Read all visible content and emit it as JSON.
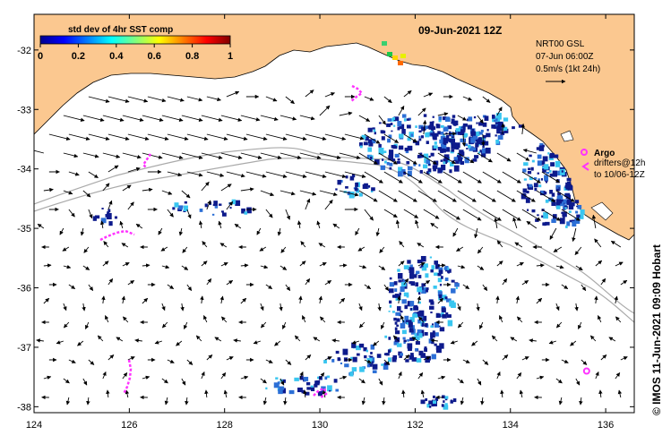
{
  "title": "09-Jun-2021 12Z",
  "colorbar": {
    "label": "std dev of 4hr SST comp",
    "ticks": [
      "0",
      "0.2",
      "0.4",
      "0.6",
      "0.8",
      "1"
    ],
    "range": [
      0,
      1
    ]
  },
  "current_legend": {
    "line1": "NRT00 GSL",
    "line2": "07-Jun 06:00Z",
    "line3": "0.5m/s (1kt 24h)"
  },
  "drifter_legend": {
    "argo": "Argo",
    "drifters": "drifters@12h",
    "to_date": "to 10/06-12Z"
  },
  "credit": "© IMOS 11-Jun-2021 09:09 Hobart",
  "axes": {
    "x_ticks": [
      "124",
      "126",
      "128",
      "130",
      "132",
      "134",
      "136"
    ],
    "y_ticks": [
      "-32",
      "-33",
      "-34",
      "-35",
      "-36",
      "-37",
      "-38"
    ],
    "lon_range": [
      124,
      136.6
    ],
    "lat_range": [
      -38.1,
      -31.4
    ]
  },
  "colors": {
    "land": "#fbc890",
    "drifter": "#ff33ff",
    "bathymetry": "#aaaaaa",
    "sst_dev_low": "#0d1a8c",
    "sst_dev_mid": "#2c6fd6",
    "sst_dev_high": "#39c6f0"
  },
  "argo_floats": [
    {
      "lon": 135.6,
      "lat": -37.4
    }
  ]
}
